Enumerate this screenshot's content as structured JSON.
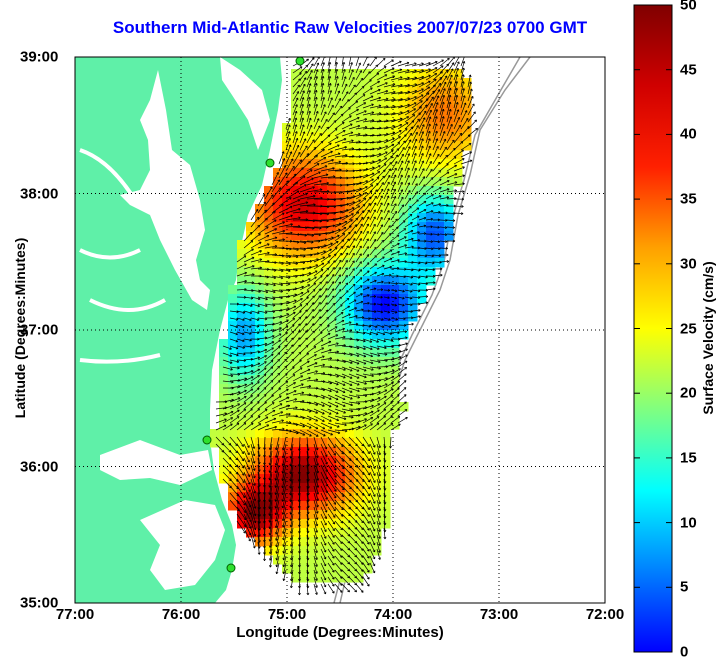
{
  "title": "Southern Mid-Atlantic Raw Velocities 2007/07/23 0700 GMT",
  "xlabel": "Longitude (Degrees:Minutes)",
  "ylabel": "Latitude (Degrees:Minutes)",
  "colorbar_label": "Surface Velocity (cm/s)",
  "x_ticks": [
    "77:00",
    "76:00",
    "75:00",
    "74:00",
    "73:00",
    "72:00"
  ],
  "y_ticks": [
    "39:00",
    "38:00",
    "37:00",
    "36:00",
    "35:00"
  ],
  "colorbar_ticks": [
    "50",
    "45",
    "40",
    "35",
    "30",
    "25",
    "20",
    "15",
    "10",
    "5",
    "0"
  ],
  "colors": {
    "land": "#5ff0a8",
    "title": "#0000ff",
    "station": "#2ee02e"
  },
  "map": {
    "lon_range": [
      -77,
      -72
    ],
    "lat_range": [
      35,
      39
    ],
    "velocity_range_cm_s": [
      0,
      50
    ],
    "grid": true,
    "colormap": "jet"
  }
}
